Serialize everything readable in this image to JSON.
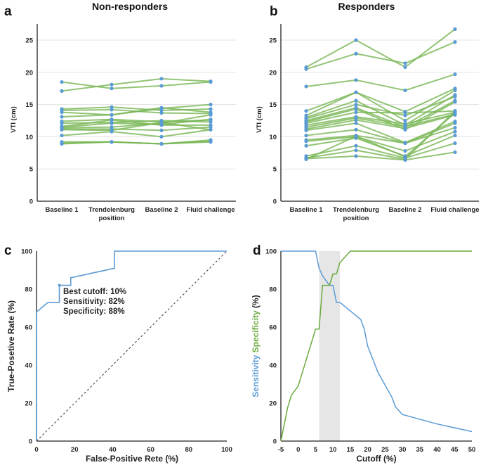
{
  "chart_data": [
    {
      "type": "line",
      "panel": "a",
      "title": "Non-responders",
      "xlabel": "",
      "ylabel": "VTI (cm)",
      "ylim": [
        0,
        27.5
      ],
      "yticks": [
        0,
        5,
        10,
        15,
        20,
        25
      ],
      "categories": [
        "Baseline 1",
        "Trendelenburg position",
        "Baseline 2",
        "Fluid challenge"
      ],
      "category_lines": [
        [
          "Baseline 1"
        ],
        [
          "Trendelenburg",
          "position"
        ],
        [
          "Baseline 2"
        ],
        [
          "Fluid challenge"
        ]
      ],
      "grid": true,
      "series": [
        [
          18.5,
          17.5,
          17.9,
          18.5
        ],
        [
          17.1,
          18.1,
          19.0,
          18.6
        ],
        [
          14.3,
          14.6,
          14.1,
          14.3
        ],
        [
          14.1,
          14.2,
          13.7,
          13.6
        ],
        [
          13.8,
          13.4,
          14.5,
          13.8
        ],
        [
          13.1,
          13.4,
          14.4,
          15.0
        ],
        [
          12.4,
          12.7,
          12.3,
          12.6
        ],
        [
          12.1,
          12.2,
          12.5,
          12.3
        ],
        [
          11.6,
          12.6,
          11.8,
          11.8
        ],
        [
          11.5,
          12.1,
          11.9,
          12.7
        ],
        [
          11.4,
          11.5,
          12.1,
          13.4
        ],
        [
          11.2,
          11.2,
          11.0,
          11.5
        ],
        [
          11.1,
          11.0,
          12.2,
          11.1
        ],
        [
          10.2,
          10.8,
          10.0,
          11.1
        ],
        [
          9.2,
          9.2,
          8.9,
          9.5
        ],
        [
          9.0,
          9.2,
          8.9,
          9.3
        ],
        [
          8.9,
          9.2,
          8.9,
          9.2
        ]
      ]
    },
    {
      "type": "line",
      "panel": "b",
      "title": "Responders",
      "xlabel": "",
      "ylabel": "VTI (cm)",
      "ylim": [
        0,
        27.5
      ],
      "yticks": [
        0,
        5,
        10,
        15,
        20,
        25
      ],
      "categories": [
        "Baseline 1",
        "Trendelenburg position",
        "Baseline 2",
        "Fluid challenge"
      ],
      "category_lines": [
        [
          "Baseline 1"
        ],
        [
          "Trendelenburg",
          "position"
        ],
        [
          "Baseline 2"
        ],
        [
          "Fluid challenge"
        ]
      ],
      "grid": true,
      "series": [
        [
          20.8,
          25.0,
          20.8,
          26.7
        ],
        [
          20.5,
          22.9,
          21.4,
          24.7
        ],
        [
          17.8,
          18.8,
          17.2,
          19.7
        ],
        [
          14.0,
          16.9,
          13.9,
          17.5
        ],
        [
          13.3,
          16.9,
          12.5,
          17.2
        ],
        [
          13.0,
          15.6,
          11.8,
          16.5
        ],
        [
          12.8,
          15.0,
          13.3,
          16.2
        ],
        [
          12.5,
          14.5,
          11.5,
          15.6
        ],
        [
          12.3,
          14.3,
          11.1,
          15.4
        ],
        [
          12.1,
          13.8,
          13.7,
          14.0
        ],
        [
          11.8,
          13.1,
          12.0,
          13.8
        ],
        [
          11.5,
          12.9,
          11.6,
          13.5
        ],
        [
          11.2,
          12.6,
          11.3,
          13.4
        ],
        [
          11.0,
          12.1,
          9.1,
          12.4
        ],
        [
          10.2,
          11.1,
          9.0,
          12.1
        ],
        [
          9.5,
          10.2,
          9.0,
          11.4
        ],
        [
          9.3,
          10.0,
          7.8,
          10.8
        ],
        [
          8.6,
          9.8,
          7.0,
          10.2
        ],
        [
          7.0,
          8.6,
          6.7,
          9.0
        ],
        [
          6.7,
          7.9,
          6.5,
          14.0
        ],
        [
          6.6,
          7.0,
          6.4,
          7.6
        ],
        [
          6.5,
          10.1,
          6.9,
          13.7
        ]
      ]
    },
    {
      "type": "line",
      "panel": "c",
      "title": "",
      "xlabel": "False-Positive Rete (%)",
      "ylabel": "True-Posetive Rate (%)",
      "xlim": [
        0,
        100
      ],
      "ylim": [
        0,
        100
      ],
      "xticks": [
        0,
        20,
        40,
        60,
        80,
        100
      ],
      "yticks": [
        0,
        20,
        40,
        60,
        80,
        100
      ],
      "roc": [
        [
          0,
          0
        ],
        [
          0,
          68
        ],
        [
          6,
          73
        ],
        [
          12,
          73
        ],
        [
          12,
          82
        ],
        [
          18,
          82
        ],
        [
          18,
          86
        ],
        [
          41,
          91
        ],
        [
          41,
          100
        ],
        [
          100,
          100
        ]
      ],
      "reference_line": [
        [
          0,
          0
        ],
        [
          100,
          100
        ]
      ],
      "best_point": [
        12,
        82
      ],
      "annotations": [
        "Best cutoff: 10%",
        "Sensitivity: 82%",
        "Specificity: 88%"
      ]
    },
    {
      "type": "line",
      "panel": "d",
      "title": "",
      "xlabel": "Cutoff (%)",
      "ylabel_parts": [
        "Sensitivity",
        "Specificity",
        "(%)"
      ],
      "xlim": [
        -5,
        50
      ],
      "ylim": [
        0,
        100
      ],
      "xticks": [
        -5,
        0,
        5,
        10,
        15,
        20,
        25,
        30,
        35,
        40,
        45,
        50
      ],
      "yticks": [
        0,
        20,
        40,
        60,
        80,
        100
      ],
      "shaded_range": [
        6,
        12
      ],
      "series": [
        {
          "name": "Sensitivity",
          "color": "#5b9bd5",
          "points": [
            [
              -5,
              100
            ],
            [
              5,
              100
            ],
            [
              6,
              91
            ],
            [
              7,
              87
            ],
            [
              9,
              82
            ],
            [
              10,
              82
            ],
            [
              11,
              73
            ],
            [
              12,
              73
            ],
            [
              18,
              64
            ],
            [
              19,
              59
            ],
            [
              20,
              50
            ],
            [
              23,
              36
            ],
            [
              27,
              23
            ],
            [
              28,
              18
            ],
            [
              30,
              14
            ],
            [
              40,
              9
            ],
            [
              50,
              5
            ]
          ]
        },
        {
          "name": "Specificity",
          "color": "#6aaa3c",
          "points": [
            [
              -5,
              0
            ],
            [
              -4,
              9
            ],
            [
              -3,
              18
            ],
            [
              -2,
              24
            ],
            [
              0,
              29
            ],
            [
              5,
              59
            ],
            [
              6,
              59
            ],
            [
              7,
              82
            ],
            [
              9,
              82
            ],
            [
              10,
              88
            ],
            [
              11,
              88
            ],
            [
              12,
              94
            ],
            [
              15,
              100
            ],
            [
              50,
              100
            ]
          ]
        }
      ]
    }
  ],
  "panel_letters": [
    "a",
    "b",
    "c",
    "d"
  ],
  "colors": {
    "line_green": "#77b552",
    "dot_blue": "#5b9bd5",
    "roc_blue": "#5b9bd5",
    "spec_green": "#6aaa3c"
  }
}
